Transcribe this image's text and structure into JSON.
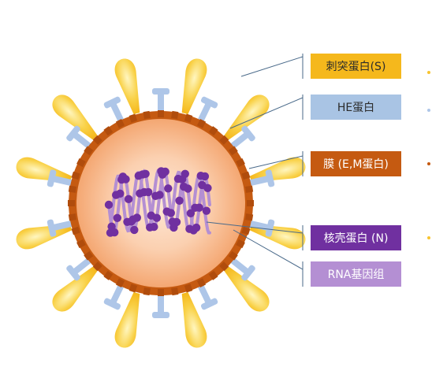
{
  "labels": {
    "spike": "刺突蛋白(S)",
    "he": "HE蛋白",
    "membrane": "膜 (E,M蛋白)",
    "nucleocapsid": "核壳蛋白 (N)",
    "rna": "RNA基因组"
  },
  "colors": {
    "spike_yellow": "#f7c430",
    "spike_pale": "#fff6c0",
    "he_blue": "#aec6e8",
    "membrane_brown": "#c55a11",
    "core_orange": "#f4a772",
    "core_light": "#fde7d6",
    "nucleo_purple": "#7030a0",
    "rna_lilac": "#b48fd3",
    "leader_line": "#4a6a8a"
  }
}
